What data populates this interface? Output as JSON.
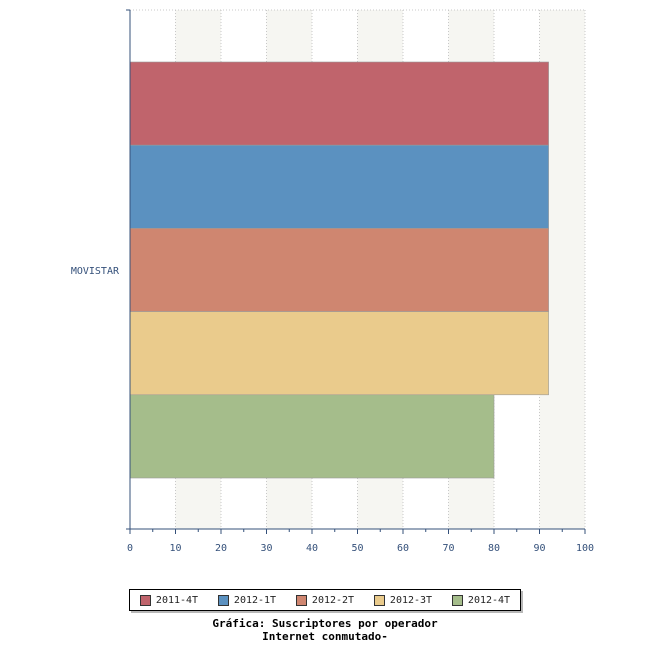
{
  "chart_data": {
    "type": "bar",
    "orientation": "horizontal",
    "categories": [
      "MOVISTAR"
    ],
    "series": [
      {
        "name": "2011-4T",
        "values": [
          92
        ],
        "color": "#c0646c"
      },
      {
        "name": "2012-1T",
        "values": [
          92
        ],
        "color": "#5b91c0"
      },
      {
        "name": "2012-2T",
        "values": [
          92
        ],
        "color": "#cf8670"
      },
      {
        "name": "2012-3T",
        "values": [
          92
        ],
        "color": "#eacb8c"
      },
      {
        "name": "2012-4T",
        "values": [
          80
        ],
        "color": "#a5bd8b"
      }
    ],
    "xlim": [
      0,
      100
    ],
    "xticks": [
      "0",
      "10",
      "20",
      "30",
      "40",
      "50",
      "60",
      "70",
      "80",
      "90",
      "100"
    ],
    "grid": true,
    "legend_position": "bottom"
  },
  "caption": {
    "line1": "Gráfica: Suscriptores por operador",
    "line2": "Internet conmutado-"
  }
}
